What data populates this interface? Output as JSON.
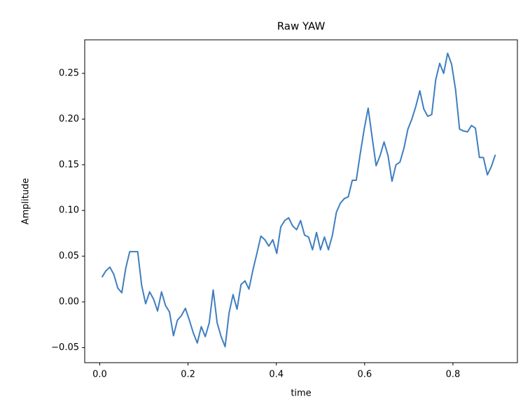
{
  "chart_data": {
    "type": "line",
    "title": "Raw YAW",
    "x_label": "time",
    "y_label": "Amplitude",
    "x": [
      0.005,
      0.014,
      0.023,
      0.032,
      0.041,
      0.05,
      0.059,
      0.068,
      0.077,
      0.086,
      0.095,
      0.104,
      0.113,
      0.122,
      0.131,
      0.14,
      0.149,
      0.158,
      0.167,
      0.176,
      0.185,
      0.194,
      0.203,
      0.212,
      0.221,
      0.23,
      0.239,
      0.248,
      0.257,
      0.266,
      0.275,
      0.284,
      0.293,
      0.302,
      0.311,
      0.32,
      0.329,
      0.338,
      0.347,
      0.356,
      0.365,
      0.374,
      0.383,
      0.392,
      0.401,
      0.41,
      0.419,
      0.428,
      0.437,
      0.446,
      0.455,
      0.464,
      0.473,
      0.482,
      0.491,
      0.5,
      0.509,
      0.518,
      0.527,
      0.536,
      0.545,
      0.554,
      0.563,
      0.572,
      0.581,
      0.59,
      0.599,
      0.608,
      0.617,
      0.626,
      0.635,
      0.644,
      0.653,
      0.662,
      0.671,
      0.68,
      0.689,
      0.698,
      0.707,
      0.716,
      0.725,
      0.734,
      0.743,
      0.752,
      0.761,
      0.77,
      0.779,
      0.788,
      0.797,
      0.806,
      0.815,
      0.824,
      0.833,
      0.842,
      0.851,
      0.86,
      0.869,
      0.878,
      0.887,
      0.896
    ],
    "series": [
      {
        "color": "#3f7ebf",
        "values": [
          0.027,
          0.034,
          0.038,
          0.03,
          0.015,
          0.01,
          0.037,
          0.055,
          0.055,
          0.055,
          0.018,
          -0.002,
          0.011,
          0.003,
          -0.01,
          0.011,
          -0.004,
          -0.011,
          -0.037,
          -0.02,
          -0.015,
          -0.007,
          -0.02,
          -0.034,
          -0.045,
          -0.027,
          -0.038,
          -0.023,
          0.013,
          -0.023,
          -0.038,
          -0.049,
          -0.012,
          0.008,
          -0.008,
          0.019,
          0.023,
          0.014,
          0.035,
          0.053,
          0.072,
          0.068,
          0.061,
          0.068,
          0.053,
          0.082,
          0.089,
          0.092,
          0.083,
          0.079,
          0.089,
          0.073,
          0.071,
          0.057,
          0.076,
          0.057,
          0.071,
          0.057,
          0.073,
          0.098,
          0.108,
          0.113,
          0.115,
          0.133,
          0.133,
          0.162,
          0.189,
          0.212,
          0.18,
          0.149,
          0.16,
          0.175,
          0.16,
          0.132,
          0.15,
          0.153,
          0.168,
          0.189,
          0.2,
          0.214,
          0.231,
          0.211,
          0.203,
          0.205,
          0.243,
          0.261,
          0.25,
          0.272,
          0.26,
          0.232,
          0.189,
          0.187,
          0.186,
          0.193,
          0.19,
          0.158,
          0.158,
          0.139,
          0.148,
          0.161
        ]
      }
    ],
    "xlim": [
      -0.034,
      0.946
    ],
    "ylim": [
      -0.0665,
      0.2867
    ],
    "xticks": [
      {
        "value": 0,
        "label": "0.0"
      },
      {
        "value": 0.2,
        "label": "0.2"
      },
      {
        "value": 0.4,
        "label": "0.4"
      },
      {
        "value": 0.6,
        "label": "0.6"
      },
      {
        "value": 0.8,
        "label": "0.8"
      }
    ],
    "yticks": [
      {
        "value": -0.05,
        "label": "−0.05"
      },
      {
        "value": 0,
        "label": "0.00"
      },
      {
        "value": 0.05,
        "label": "0.05"
      },
      {
        "value": 0.1,
        "label": "0.10"
      },
      {
        "value": 0.15,
        "label": "0.15"
      },
      {
        "value": 0.2,
        "label": "0.20"
      },
      {
        "value": 0.25,
        "label": "0.25"
      }
    ],
    "grid": false
  }
}
